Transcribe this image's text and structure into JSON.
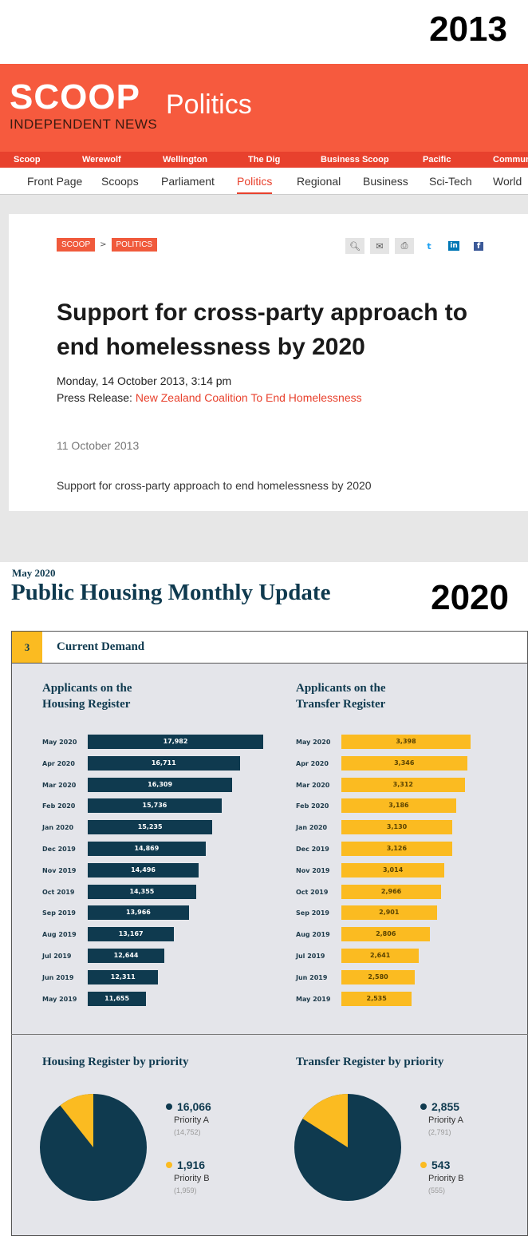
{
  "labels": {
    "top_year": "2013",
    "bottom_year": "2020"
  },
  "scoop": {
    "logo": "SCOOP",
    "logo_sub": "INDEPENDENT NEWS",
    "section": "Politics",
    "top_nav": [
      "Scoop",
      "Werewolf",
      "Wellington",
      "The Dig",
      "Business Scoop",
      "Pacific",
      "Communi"
    ],
    "main_nav": [
      "Front Page",
      "Scoops",
      "Parliament",
      "Politics",
      "Regional",
      "Business",
      "Sci-Tech",
      "World"
    ],
    "active_nav": "Politics",
    "breadcrumb": [
      "SCOOP",
      "POLITICS"
    ],
    "breadcrumb_sep": ">",
    "tools": [
      "search-icon",
      "mail-icon",
      "print-icon",
      "twitter-icon",
      "linkedin-icon",
      "facebook-icon"
    ],
    "headline": "Support for cross-party approach to end homelessness by 2020",
    "date": "Monday, 14 October 2013, 3:14 pm",
    "press_label": "Press Release:",
    "press_source": "New Zealand Coalition To End Homelessness",
    "release_date": "11 October 2013",
    "summary": "Support for cross-party approach to end homelessness by 2020",
    "colors": {
      "brand": "#f65a3e",
      "nav": "#e8412d"
    }
  },
  "report": {
    "date": "May 2020",
    "title": "Public Housing Monthly Update",
    "section_number": "3",
    "section_title": "Current Demand",
    "colors": {
      "navy": "#0f3a4f",
      "yellow": "#fbbb21",
      "panel": "#e4e5ea"
    }
  },
  "chart_data": [
    {
      "type": "bar",
      "orientation": "horizontal",
      "title": "Applicants on the Housing Register",
      "categories": [
        "May 2020",
        "Apr 2020",
        "Mar 2020",
        "Feb 2020",
        "Jan 2020",
        "Dec 2019",
        "Nov 2019",
        "Oct 2019",
        "Sep 2019",
        "Aug 2019",
        "Jul 2019",
        "Jun 2019",
        "May 2019"
      ],
      "values": [
        17982,
        16711,
        16309,
        15736,
        15235,
        14869,
        14496,
        14355,
        13966,
        13167,
        12644,
        12311,
        11655
      ],
      "value_labels": [
        "17,982",
        "16,711",
        "16,309",
        "15,736",
        "15,235",
        "14,869",
        "14,496",
        "14,355",
        "13,966",
        "13,167",
        "12,644",
        "12,311",
        "11,655"
      ],
      "color": "#0f3a4f"
    },
    {
      "type": "bar",
      "orientation": "horizontal",
      "title": "Applicants on the Transfer Register",
      "categories": [
        "May 2020",
        "Apr 2020",
        "Mar 2020",
        "Feb 2020",
        "Jan 2020",
        "Dec 2019",
        "Nov 2019",
        "Oct 2019",
        "Sep 2019",
        "Aug 2019",
        "Jul 2019",
        "Jun 2019",
        "May 2019"
      ],
      "values": [
        3398,
        3346,
        3312,
        3186,
        3130,
        3126,
        3014,
        2966,
        2901,
        2806,
        2641,
        2580,
        2535
      ],
      "value_labels": [
        "3,398",
        "3,346",
        "3,312",
        "3,186",
        "3,130",
        "3,126",
        "3,014",
        "2,966",
        "2,901",
        "2,806",
        "2,641",
        "2,580",
        "2,535"
      ],
      "color": "#fbbb21"
    },
    {
      "type": "pie",
      "title": "Housing Register by priority",
      "slices": [
        {
          "name": "Priority A",
          "value": 16066,
          "label": "16,066",
          "previous": "(14,752)",
          "color": "#0f3a4f"
        },
        {
          "name": "Priority B",
          "value": 1916,
          "label": "1,916",
          "previous": "(1,959)",
          "color": "#fbbb21"
        }
      ]
    },
    {
      "type": "pie",
      "title": "Transfer Register by priority",
      "slices": [
        {
          "name": "Priority A",
          "value": 2855,
          "label": "2,855",
          "previous": "(2,791)",
          "color": "#0f3a4f"
        },
        {
          "name": "Priority B",
          "value": 543,
          "label": "543",
          "previous": "(555)",
          "color": "#fbbb21"
        }
      ]
    }
  ]
}
